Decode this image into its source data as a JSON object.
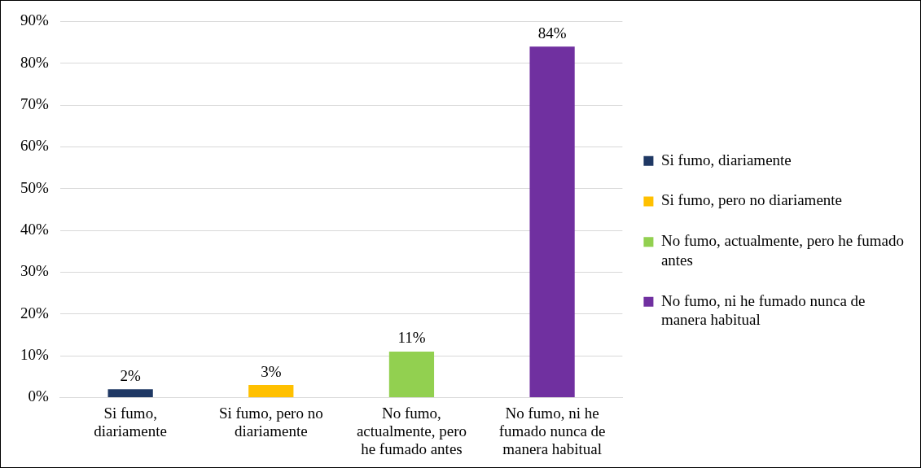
{
  "chart_data": {
    "type": "bar",
    "categories": [
      "Si fumo, diariamente",
      "Si fumo, pero no diariamente",
      "No fumo, actualmente, pero he fumado antes",
      "No fumo, ni he fumado nunca de manera habitual"
    ],
    "series": [
      {
        "name": "Si fumo, diariamente",
        "color": "#1f3864",
        "values": [
          2,
          null,
          null,
          null
        ],
        "value_labels": [
          "2%",
          null,
          null,
          null
        ]
      },
      {
        "name": "Si fumo, pero no diariamente",
        "color": "#ffc000",
        "values": [
          null,
          3,
          null,
          null
        ],
        "value_labels": [
          null,
          "3%",
          null,
          null
        ]
      },
      {
        "name": "No fumo, actualmente, pero he fumado antes",
        "color": "#92d050",
        "values": [
          null,
          null,
          11,
          null
        ],
        "value_labels": [
          null,
          null,
          "11%",
          null
        ]
      },
      {
        "name": "No fumo, ni he fumado nunca de manera habitual",
        "color": "#7030a0",
        "values": [
          null,
          null,
          null,
          84
        ],
        "value_labels": [
          null,
          null,
          null,
          "84%"
        ]
      }
    ],
    "ylim": [
      0,
      90
    ],
    "yticks": [
      {
        "value": 0,
        "label": "0%"
      },
      {
        "value": 10,
        "label": "10%"
      },
      {
        "value": 20,
        "label": "20%"
      },
      {
        "value": 30,
        "label": "30%"
      },
      {
        "value": 40,
        "label": "40%"
      },
      {
        "value": 50,
        "label": "50%"
      },
      {
        "value": 60,
        "label": "60%"
      },
      {
        "value": 70,
        "label": "70%"
      },
      {
        "value": 80,
        "label": "80%"
      },
      {
        "value": 90,
        "label": "90%"
      }
    ],
    "grid": "y",
    "legend": "right"
  }
}
